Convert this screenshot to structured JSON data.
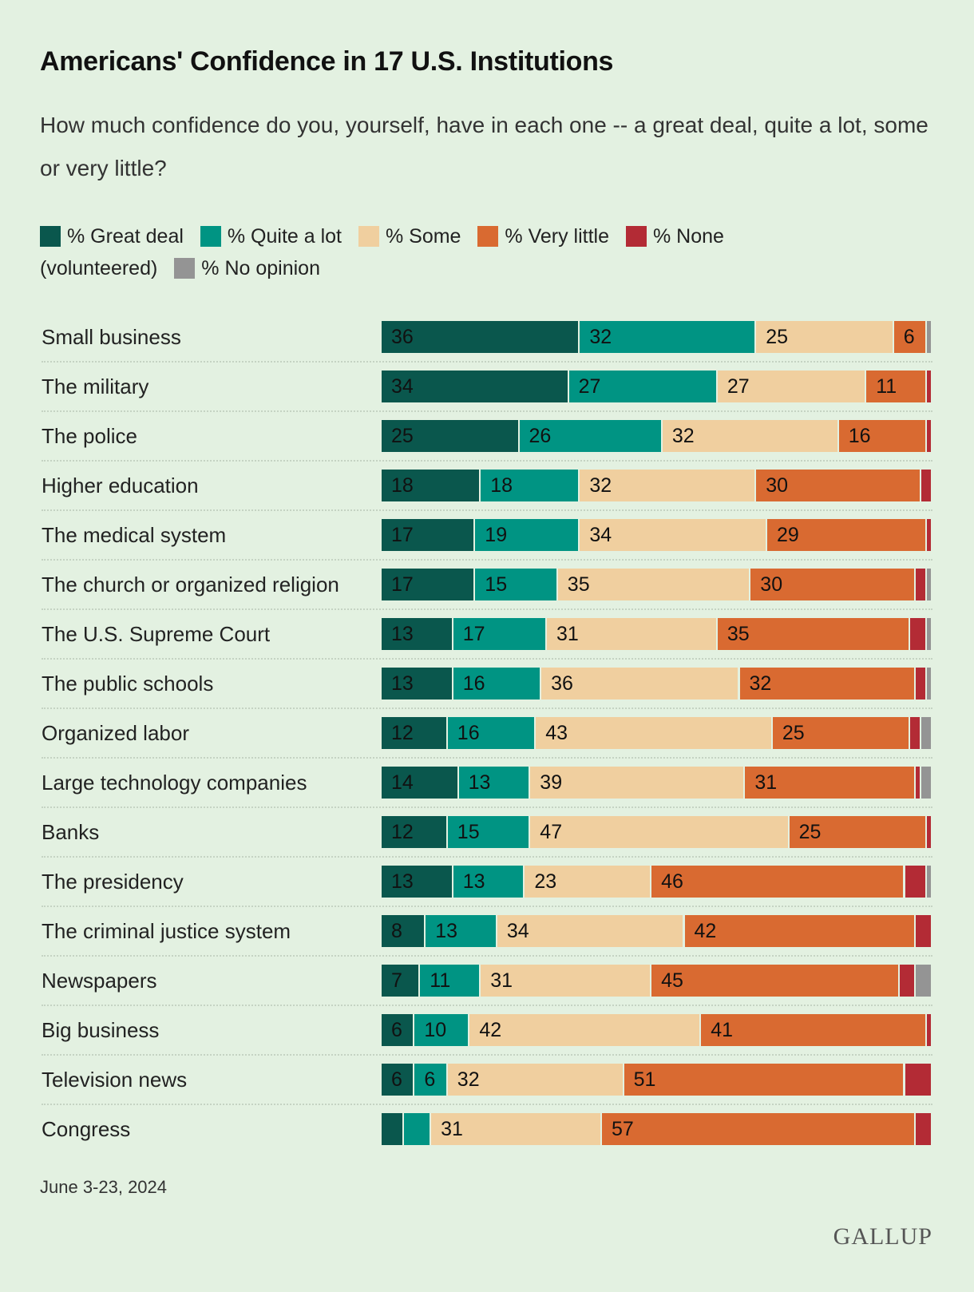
{
  "chart_data": {
    "type": "bar",
    "orientation": "horizontal",
    "stacked": true,
    "title": "Americans' Confidence in 17 U.S. Institutions",
    "subtitle": "How much confidence do you, yourself, have in each one -- a great deal, quite a lot, some or very little?",
    "legend_position": "top",
    "grid": false,
    "xlim": [
      0,
      100
    ],
    "categories": [
      "Small business",
      "The military",
      "The police",
      "Higher education",
      "The medical system",
      "The church or organized religion",
      "The U.S. Supreme Court",
      "The public schools",
      "Organized labor",
      "Large technology companies",
      "Banks",
      "The presidency",
      "The criminal justice system",
      "Newspapers",
      "Big business",
      "Television news",
      "Congress"
    ],
    "series": [
      {
        "name": "% Great deal",
        "color": "#0a574d",
        "values": [
          36,
          34,
          25,
          18,
          17,
          17,
          13,
          13,
          12,
          14,
          12,
          13,
          8,
          7,
          6,
          6,
          4
        ]
      },
      {
        "name": "% Quite a lot",
        "color": "#009483",
        "values": [
          32,
          27,
          26,
          18,
          19,
          15,
          17,
          16,
          16,
          13,
          15,
          13,
          13,
          11,
          10,
          6,
          5
        ]
      },
      {
        "name": "% Some",
        "color": "#f0cf9f",
        "values": [
          25,
          27,
          32,
          32,
          34,
          35,
          31,
          36,
          43,
          39,
          47,
          23,
          34,
          31,
          42,
          32,
          31
        ]
      },
      {
        "name": "% Very little",
        "color": "#d96a31",
        "values": [
          6,
          11,
          16,
          30,
          29,
          30,
          35,
          32,
          25,
          31,
          25,
          46,
          42,
          45,
          41,
          51,
          57
        ]
      },
      {
        "name": "% None (volunteered)",
        "color": "#b32b35",
        "values": [
          0,
          1,
          1,
          2,
          1,
          2,
          3,
          2,
          2,
          1,
          1,
          4,
          3,
          3,
          1,
          5,
          3
        ]
      },
      {
        "name": "% No opinion",
        "color": "#949494",
        "values": [
          1,
          0,
          0,
          0,
          0,
          1,
          1,
          1,
          2,
          2,
          0,
          1,
          0,
          3,
          0,
          0,
          0
        ]
      }
    ],
    "label_min": 6,
    "labeled_series_count": 4
  },
  "legend": {
    "great_deal": "% Great deal",
    "quite_a_lot": "% Quite a lot",
    "some": "% Some",
    "very_little": "% Very little",
    "none": "% None",
    "volunteered": "(volunteered)",
    "no_opinion": "% No opinion"
  },
  "footer": {
    "date": "June 3-23, 2024",
    "logo": "GALLUP"
  }
}
